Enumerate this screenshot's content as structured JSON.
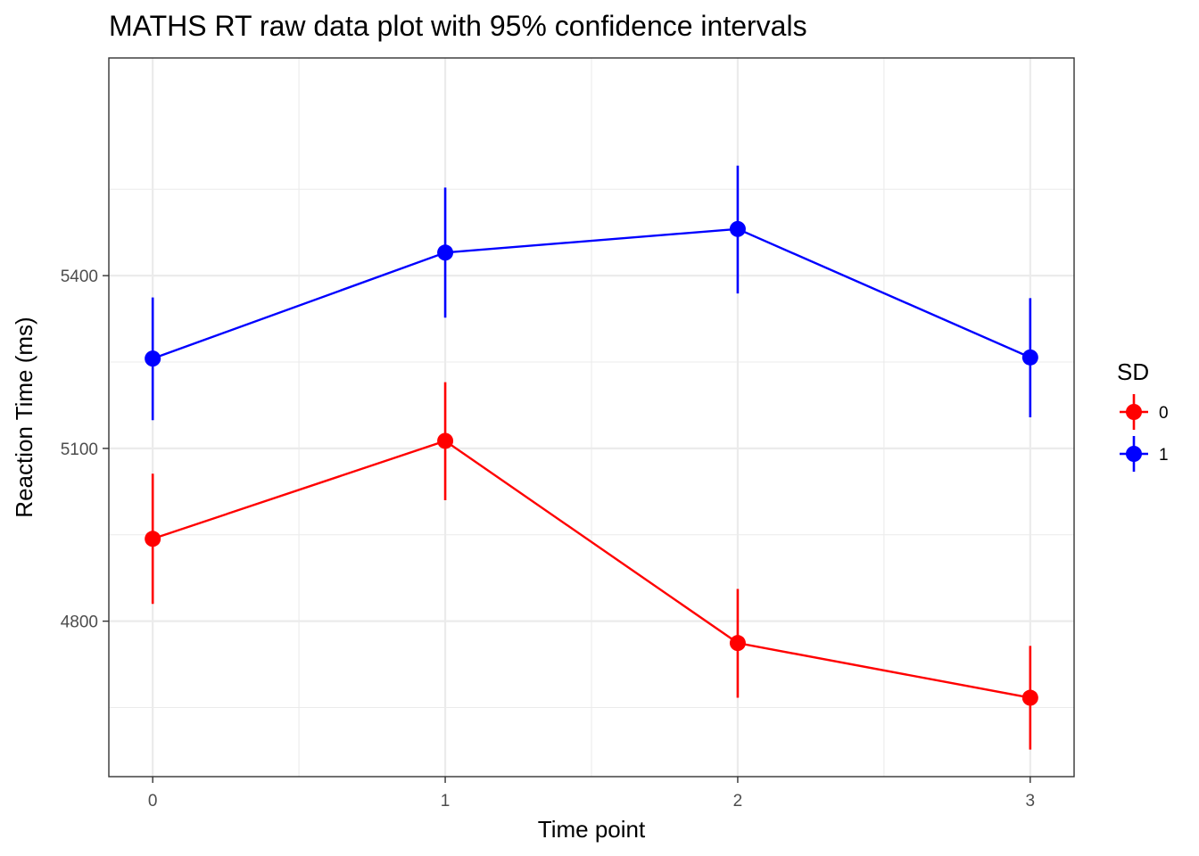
{
  "chart_data": {
    "type": "line",
    "title": "MATHS RT raw data plot with 95% confidence intervals",
    "xlabel": "Time point",
    "ylabel": "Reaction Time (ms)",
    "x": [
      0,
      1,
      2,
      3
    ],
    "x_tick_labels": [
      "0",
      "1",
      "2",
      "3"
    ],
    "y_ticks": [
      4800,
      5100,
      5400
    ],
    "y_tick_labels": [
      "4800",
      "5100",
      "5400"
    ],
    "xlim": [
      -0.15,
      3.15
    ],
    "ylim": [
      4530,
      5778
    ],
    "grid": true,
    "legend": {
      "title": "SD",
      "position": "right"
    },
    "series": [
      {
        "name": "0",
        "color": "#ff0000",
        "values": [
          4943,
          5113,
          4762,
          4667
        ],
        "ci_lower": [
          4830,
          5010,
          4667,
          4577
        ],
        "ci_upper": [
          5056,
          5215,
          4856,
          4757
        ]
      },
      {
        "name": "1",
        "color": "#0000ff",
        "values": [
          5256,
          5440,
          5481,
          5258
        ],
        "ci_lower": [
          5149,
          5327,
          5369,
          5154
        ],
        "ci_upper": [
          5362,
          5553,
          5591,
          5361
        ]
      }
    ]
  }
}
